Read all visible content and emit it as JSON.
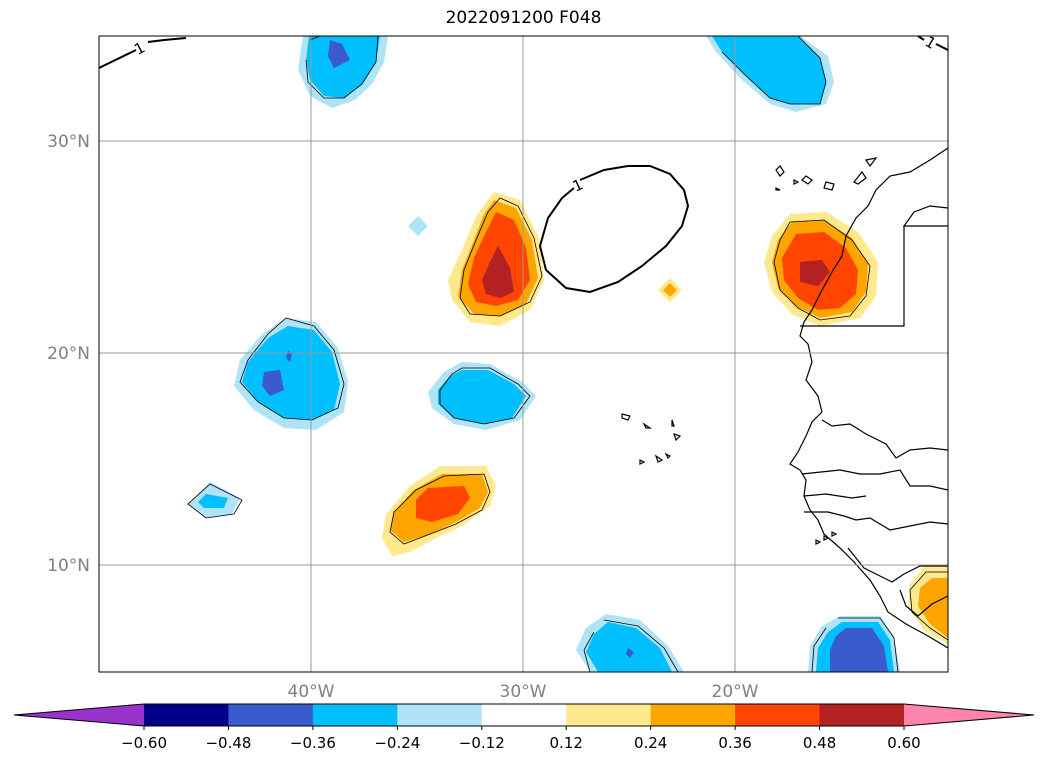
{
  "title": "2022091200 F048",
  "lat_labels": [
    "30°N",
    "20°N",
    "10°N"
  ],
  "lon_labels": [
    "40°W",
    "30°W",
    "20°W"
  ],
  "contour_label": "1",
  "colorbar": {
    "tick_labels": [
      "−0.60",
      "−0.48",
      "−0.36",
      "−0.24",
      "−0.12",
      "0.12",
      "0.24",
      "0.36",
      "0.48",
      "0.60"
    ],
    "colors": [
      "#9a32cd",
      "#00008b",
      "#3a5bcc",
      "#00bfff",
      "#aee3f8",
      "#ffffff",
      "#ffe98c",
      "#ffa500",
      "#ff4500",
      "#b22222",
      "#ff85ad"
    ]
  }
}
